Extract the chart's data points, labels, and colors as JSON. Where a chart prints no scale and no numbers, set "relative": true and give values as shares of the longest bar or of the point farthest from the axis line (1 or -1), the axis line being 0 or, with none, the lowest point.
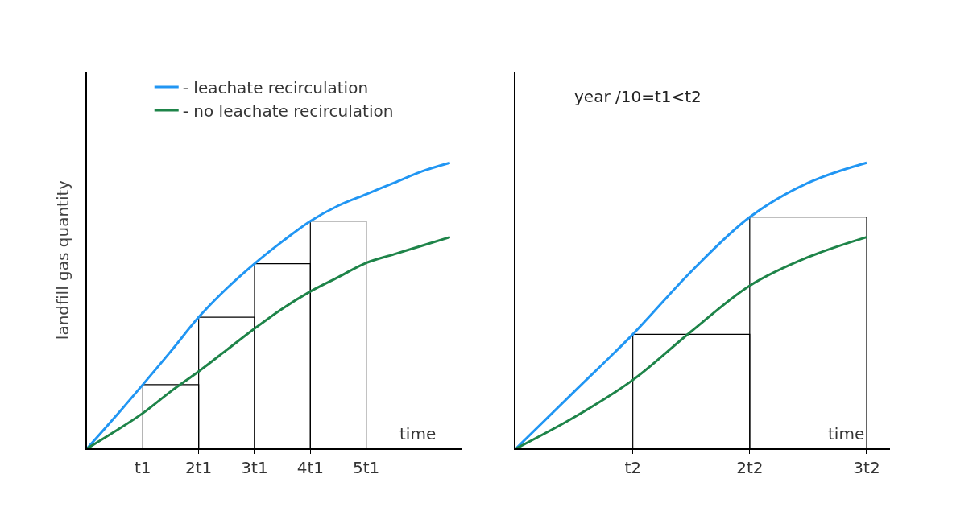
{
  "chart_data": [
    {
      "type": "line",
      "relative": true,
      "ylabel": "landfill gas quantity",
      "xlabel": "time",
      "legend": "top",
      "categories": [
        null,
        null,
        "t1",
        null,
        "2t1",
        null,
        "3t1",
        null,
        "4t1",
        null,
        "5t1",
        null,
        null,
        null
      ],
      "series": [
        {
          "name": "- leachate recirculation",
          "color": "#2196f3",
          "values": [
            0,
            0.11,
            0.224,
            0.34,
            0.46,
            0.56,
            0.647,
            0.725,
            0.796,
            0.85,
            0.89,
            0.93,
            0.97,
            1
          ]
        },
        {
          "name": "- no leachate recirculation",
          "color": "#1e8449",
          "values": [
            0,
            0.06,
            0.124,
            0.2,
            0.27,
            0.345,
            0.42,
            0.49,
            0.55,
            0.6,
            0.65,
            0.68,
            0.71,
            0.74
          ]
        },
        {
          "type": "bar",
          "color": "#000000",
          "values": [
            null,
            null,
            null,
            0.224,
            null,
            0.46,
            null,
            0.647,
            null,
            0.796,
            null,
            null,
            null,
            null
          ]
        }
      ]
    },
    {
      "type": "line",
      "relative": true,
      "xlabel": "time",
      "annotations": [
        "year /10=t1<t2"
      ],
      "categories": [
        null,
        null,
        "t2",
        null,
        "2t2",
        null,
        "3t2"
      ],
      "series": [
        {
          "color": "#2196f3",
          "values": [
            0,
            0.2,
            0.4,
            0.62,
            0.81,
            0.93,
            1
          ]
        },
        {
          "color": "#1e8449",
          "values": [
            0,
            0.11,
            0.24,
            0.41,
            0.57,
            0.67,
            0.74
          ]
        },
        {
          "type": "bar",
          "color": "#000000",
          "values": [
            null,
            null,
            null,
            0.4,
            null,
            0.81,
            null
          ]
        }
      ]
    }
  ]
}
